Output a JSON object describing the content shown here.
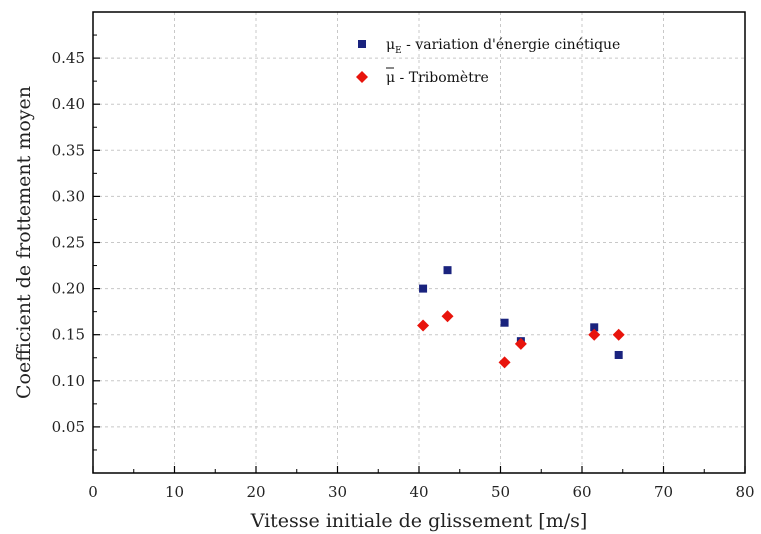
{
  "chart_data": {
    "type": "scatter",
    "xlabel": "Vitesse initiale de glissement [m/s]",
    "ylabel": "Coefficient de frottement moyen",
    "xlim": [
      0,
      80
    ],
    "ylim": [
      0,
      0.5
    ],
    "xticks": [
      0,
      10,
      20,
      30,
      40,
      50,
      60,
      70,
      80
    ],
    "yticks": [
      0.05,
      0.1,
      0.15,
      0.2,
      0.25,
      0.3,
      0.35,
      0.4,
      0.45
    ],
    "xtick_labels": [
      "0",
      "10",
      "20",
      "30",
      "40",
      "50",
      "60",
      "70",
      "80"
    ],
    "ytick_labels": [
      "0.05",
      "0.10",
      "0.15",
      "0.20",
      "0.25",
      "0.30",
      "0.35",
      "0.40",
      "0.45"
    ],
    "grid": true,
    "legend_position": "top-right",
    "series": [
      {
        "name": "μE - variation d'énergie cinétique",
        "legend_main": "μ",
        "legend_sub": "E",
        "legend_rest": " - variation d'énergie cinétique",
        "marker": "square",
        "color": "#1a237e",
        "x": [
          40.5,
          43.5,
          50.5,
          52.5,
          61.5,
          64.5
        ],
        "y": [
          0.2,
          0.22,
          0.163,
          0.143,
          0.158,
          0.128
        ]
      },
      {
        "name": "μ̄ - Tribomètre",
        "legend_main": "μ",
        "legend_bar": true,
        "legend_rest": " - Tribomètre",
        "marker": "diamond",
        "color": "#e8140c",
        "x": [
          40.5,
          43.5,
          50.5,
          52.5,
          61.5,
          64.5
        ],
        "y": [
          0.16,
          0.17,
          0.12,
          0.14,
          0.15,
          0.15
        ]
      }
    ]
  }
}
